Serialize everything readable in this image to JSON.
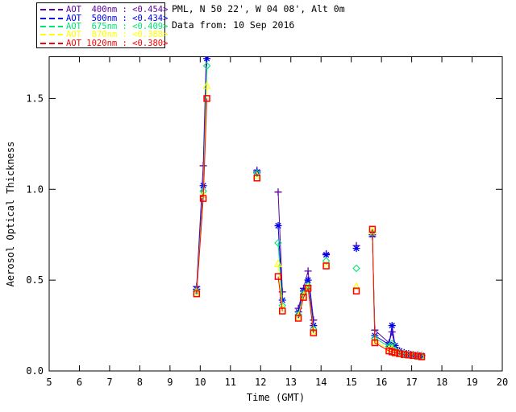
{
  "header": {
    "station": "PML, N 50 22', W 04 08', Alt 0m",
    "data_from": "Data from: 10 Sep 2016"
  },
  "legend": {
    "prefix": "AOT"
  },
  "chart_data": {
    "type": "line",
    "title": "",
    "xlabel": "Time (GMT)",
    "ylabel": "Aerosol Optical Thickness",
    "xlim": [
      5,
      20
    ],
    "ylim": [
      0.0,
      1.73
    ],
    "grid": false,
    "legend_position": "top-left",
    "x_ticks": [
      5,
      6,
      7,
      8,
      9,
      10,
      11,
      12,
      13,
      14,
      15,
      16,
      17,
      18,
      19,
      20
    ],
    "y_ticks": [
      {
        "v": 0.0,
        "label": "0.0"
      },
      {
        "v": 0.5,
        "label": "0.5"
      },
      {
        "v": 1.0,
        "label": "1.0"
      },
      {
        "v": 1.5,
        "label": "1.5"
      }
    ],
    "series": [
      {
        "name": "AOT 400nm",
        "band": "400nm",
        "mean": "<0.454>",
        "color": "#5e00a8",
        "marker": "plus"
      },
      {
        "name": "AOT 500nm",
        "band": "500nm",
        "mean": "<0.434>",
        "color": "#0000ee",
        "marker": "asterisk"
      },
      {
        "name": "AOT 675nm",
        "band": "675nm",
        "mean": "<0.409>",
        "color": "#00e673",
        "marker": "diamond"
      },
      {
        "name": "AOT 870nm",
        "band": "870nm",
        "mean": "<0.388>",
        "color": "#ffff00",
        "marker": "triangle"
      },
      {
        "name": "AOT 1020nm",
        "band": "1020nm",
        "mean": "<0.380>",
        "color": "#ff0000",
        "marker": "square"
      }
    ],
    "groups": [
      {
        "connected": true,
        "points": [
          {
            "t": 9.88,
            "aot": [
              0.465,
              0.45,
              0.44,
              0.435,
              0.425
            ]
          },
          {
            "t": 10.1,
            "aot": [
              1.13,
              1.02,
              0.99,
              0.97,
              0.95
            ]
          },
          {
            "t": 10.22,
            "aot": [
              1.85,
              1.72,
              1.68,
              1.57,
              1.5
            ]
          }
        ]
      },
      {
        "connected": false,
        "points": [
          {
            "t": 11.88,
            "aot": [
              1.105,
              1.095,
              1.088,
              1.075,
              1.062
            ]
          }
        ]
      },
      {
        "connected": true,
        "points": [
          {
            "t": 12.58,
            "aot": [
              0.985,
              0.8,
              0.705,
              0.59,
              0.52
            ]
          },
          {
            "t": 12.72,
            "aot": [
              0.435,
              0.39,
              0.36,
              0.345,
              0.33
            ]
          }
        ]
      },
      {
        "connected": true,
        "points": [
          {
            "t": 13.25,
            "aot": [
              0.345,
              0.325,
              0.31,
              0.3,
              0.29
            ]
          },
          {
            "t": 13.42,
            "aot": [
              0.455,
              0.44,
              0.425,
              0.415,
              0.405
            ]
          },
          {
            "t": 13.57,
            "aot": [
              0.55,
              0.5,
              0.47,
              0.462,
              0.455
            ]
          },
          {
            "t": 13.75,
            "aot": [
              0.28,
              0.25,
              0.23,
              0.22,
              0.21
            ]
          }
        ]
      },
      {
        "connected": false,
        "points": [
          {
            "t": 14.17,
            "aot": [
              0.645,
              0.64,
              0.606,
              0.58,
              0.578
            ]
          }
        ]
      },
      {
        "connected": false,
        "points": [
          {
            "t": 15.17,
            "aot": [
              0.69,
              0.675,
              0.565,
              0.465,
              0.44
            ]
          }
        ]
      },
      {
        "connected": true,
        "points": [
          {
            "t": 15.7,
            "aot": [
              0.74,
              0.75,
              0.76,
              0.77,
              0.78
            ]
          },
          {
            "t": 15.78,
            "aot": [
              0.225,
              0.195,
              0.18,
              0.165,
              0.155
            ]
          },
          {
            "t": 16.25,
            "aot": [
              0.155,
              0.145,
              0.135,
              0.12,
              0.11
            ]
          },
          {
            "t": 16.35,
            "aot": [
              0.215,
              0.25,
              0.15,
              0.12,
              0.105
            ]
          },
          {
            "t": 16.45,
            "aot": [
              0.13,
              0.14,
              0.115,
              0.105,
              0.1
            ]
          },
          {
            "t": 16.6,
            "aot": [
              0.11,
              0.11,
              0.1,
              0.095,
              0.095
            ]
          },
          {
            "t": 16.75,
            "aot": [
              0.1,
              0.1,
              0.095,
              0.09,
              0.09
            ]
          },
          {
            "t": 16.9,
            "aot": [
              0.095,
              0.095,
              0.09,
              0.088,
              0.088
            ]
          },
          {
            "t": 17.05,
            "aot": [
              0.09,
              0.09,
              0.088,
              0.085,
              0.085
            ]
          },
          {
            "t": 17.2,
            "aot": [
              0.088,
              0.088,
              0.085,
              0.082,
              0.082
            ]
          },
          {
            "t": 17.33,
            "aot": [
              0.085,
              0.085,
              0.082,
              0.08,
              0.078
            ]
          }
        ]
      }
    ]
  }
}
